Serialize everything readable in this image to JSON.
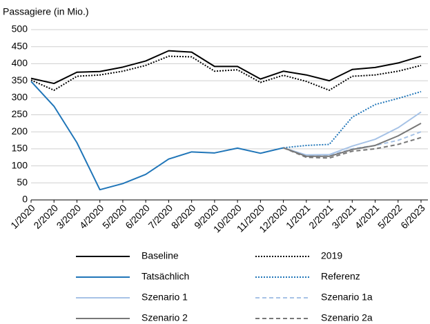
{
  "chart_data": {
    "type": "line",
    "y_axis_label": "Passagiere (in Mio.)",
    "categories": [
      "1/2020",
      "2/2020",
      "3/2020",
      "4/2020",
      "5/2020",
      "6/2020",
      "7/2020",
      "8/2020",
      "9/2020",
      "10/2020",
      "11/2020",
      "12/2020",
      "1/2021",
      "2/2021",
      "3/2021",
      "4/2021",
      "5/2022",
      "6/2023"
    ],
    "ylim": [
      0,
      500
    ],
    "yticks": [
      0,
      50,
      100,
      150,
      200,
      250,
      300,
      350,
      400,
      450,
      500
    ],
    "grid": true,
    "legend": "bottom",
    "series": [
      {
        "name": "Baseline",
        "color": "#000000",
        "style": "solid",
        "values": [
          357,
          342,
          375,
          377,
          390,
          408,
          438,
          434,
          392,
          392,
          355,
          378,
          367,
          350,
          383,
          389,
          402,
          422
        ]
      },
      {
        "name": "2019",
        "color": "#000000",
        "style": "dotted",
        "values": [
          352,
          322,
          363,
          367,
          378,
          395,
          422,
          420,
          378,
          382,
          345,
          366,
          348,
          322,
          363,
          367,
          378,
          395
        ]
      },
      {
        "name": "Tatsächlich",
        "color": "#1f75b8",
        "style": "solid",
        "values": [
          348,
          275,
          168,
          30,
          48,
          75,
          120,
          141,
          138,
          152,
          137,
          153,
          null,
          null,
          null,
          null,
          null,
          null
        ]
      },
      {
        "name": "Referenz",
        "color": "#1f75b8",
        "style": "dotted",
        "values": [
          null,
          null,
          null,
          null,
          null,
          null,
          null,
          null,
          null,
          null,
          null,
          153,
          160,
          163,
          243,
          280,
          298,
          318
        ]
      },
      {
        "name": "Szenario 1",
        "color": "#a6c2e6",
        "style": "solid",
        "values": [
          null,
          null,
          null,
          null,
          null,
          null,
          null,
          null,
          null,
          null,
          null,
          153,
          132,
          133,
          158,
          178,
          212,
          258
        ]
      },
      {
        "name": "Szenario 1a",
        "color": "#a6c2e6",
        "style": "dashed",
        "values": [
          null,
          null,
          null,
          null,
          null,
          null,
          null,
          null,
          null,
          null,
          null,
          153,
          130,
          130,
          150,
          160,
          175,
          200
        ]
      },
      {
        "name": "Szenario 2",
        "color": "#777777",
        "style": "solid",
        "values": [
          null,
          null,
          null,
          null,
          null,
          null,
          null,
          null,
          null,
          null,
          null,
          153,
          128,
          128,
          148,
          160,
          188,
          225
        ]
      },
      {
        "name": "Szenario 2a",
        "color": "#777777",
        "style": "dashed",
        "values": [
          null,
          null,
          null,
          null,
          null,
          null,
          null,
          null,
          null,
          null,
          null,
          153,
          125,
          123,
          143,
          150,
          163,
          183
        ]
      }
    ]
  }
}
